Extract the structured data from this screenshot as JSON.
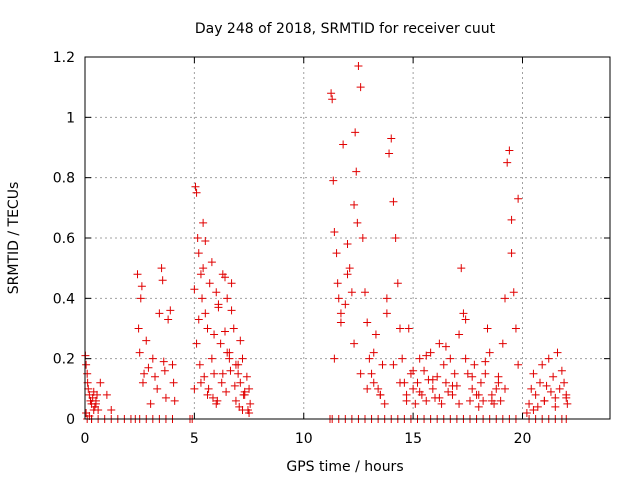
{
  "chart_data": {
    "type": "scatter",
    "title": "Day 248 of 2018, SRMTID for receiver cuut",
    "xlabel": "GPS time / hours",
    "ylabel": "SRMTID / TECUs",
    "xlim": [
      0,
      24
    ],
    "ylim": [
      0,
      1.2
    ],
    "xticks": [
      0,
      5,
      10,
      15,
      20
    ],
    "xtick_labels": [
      "0",
      "5",
      "10",
      "15",
      "20"
    ],
    "yticks": [
      0,
      0.2,
      0.4,
      0.6,
      0.8,
      1,
      1.2
    ],
    "ytick_labels": [
      "0",
      "0.2",
      "0.4",
      "0.6",
      "0.8",
      "1",
      "1.2"
    ],
    "grid": true,
    "marker": "+",
    "color": "#e00000",
    "series": [
      {
        "name": "SRMTID",
        "x": [
          0.02,
          0.05,
          0.1,
          0.12,
          0.15,
          0.2,
          0.25,
          0.3,
          0.35,
          0.4,
          0.45,
          0.5,
          0.55,
          0.6,
          0.05,
          0.1,
          0.2,
          0.3,
          0.4,
          0.5,
          0.3,
          0.6,
          0.9,
          1.2,
          1.5,
          1.8,
          2.1,
          2.3,
          0.7,
          1.0,
          1.2,
          2.4,
          2.45,
          2.5,
          2.55,
          2.6,
          2.65,
          2.7,
          2.8,
          2.9,
          3.0,
          3.1,
          3.2,
          3.3,
          3.4,
          3.5,
          3.55,
          3.6,
          3.65,
          3.7,
          3.8,
          3.9,
          4.0,
          4.05,
          4.1,
          2.5,
          2.8,
          3.1,
          3.4,
          3.7,
          4.0,
          4.8,
          4.9,
          5.0,
          5.05,
          5.1,
          5.15,
          5.2,
          5.3,
          5.35,
          5.4,
          5.5,
          5.6,
          5.7,
          5.8,
          5.9,
          6.0,
          6.1,
          6.2,
          6.3,
          6.4,
          6.5,
          6.6,
          6.7,
          6.8,
          6.9,
          7.0,
          7.1,
          7.2,
          7.3,
          7.4,
          7.5,
          7.55,
          5.2,
          5.5,
          5.8,
          6.1,
          6.4,
          6.7,
          7.0,
          7.3,
          5.4,
          5.9,
          6.5,
          7.1,
          5.0,
          5.3,
          5.6,
          6.0,
          6.3,
          6.6,
          6.9,
          7.2,
          7.5,
          5.1,
          5.25,
          5.45,
          5.65,
          5.85,
          6.05,
          6.25,
          6.45,
          6.65,
          6.85,
          7.05,
          7.25,
          7.45,
          11.2,
          11.25,
          11.3,
          11.35,
          11.4,
          11.5,
          11.55,
          11.6,
          11.7,
          11.8,
          11.9,
          12.0,
          12.1,
          12.2,
          12.3,
          12.35,
          12.4,
          12.45,
          12.5,
          12.6,
          12.7,
          12.8,
          12.9,
          13.0,
          13.1,
          13.2,
          13.3,
          13.4,
          13.5,
          13.6,
          13.7,
          13.8,
          13.9,
          14.0,
          14.1,
          14.2,
          14.3,
          14.4,
          14.5,
          14.6,
          14.7,
          14.8,
          14.9,
          15.0,
          15.1,
          15.2,
          15.3,
          15.4,
          15.5,
          15.6,
          15.7,
          15.8,
          15.9,
          16.0,
          16.1,
          16.2,
          16.3,
          16.4,
          16.5,
          16.6,
          16.7,
          16.8,
          16.9,
          17.0,
          17.1,
          17.2,
          17.3,
          17.4,
          17.5,
          17.6,
          17.7,
          17.8,
          17.9,
          18.0,
          18.1,
          18.2,
          18.3,
          18.4,
          18.5,
          18.6,
          18.7,
          18.8,
          18.9,
          19.0,
          19.1,
          19.2,
          19.3,
          19.4,
          19.5,
          19.6,
          19.7,
          19.8,
          11.3,
          11.6,
          11.9,
          12.2,
          12.5,
          12.8,
          13.1,
          13.4,
          13.7,
          14.0,
          14.3,
          14.6,
          14.9,
          15.2,
          15.5,
          15.8,
          16.1,
          16.4,
          16.7,
          17.0,
          17.3,
          17.6,
          17.9,
          18.2,
          18.5,
          18.8,
          19.1,
          19.4,
          19.7,
          11.4,
          11.7,
          12.0,
          12.3,
          12.6,
          12.9,
          13.2,
          13.5,
          13.8,
          14.1,
          14.4,
          14.7,
          15.0,
          15.3,
          15.6,
          15.9,
          16.2,
          16.5,
          16.8,
          17.1,
          17.4,
          17.7,
          18.0,
          18.3,
          18.6,
          18.9,
          19.2,
          19.5,
          19.8,
          20.2,
          20.3,
          20.4,
          20.5,
          20.6,
          20.7,
          20.8,
          20.9,
          21.0,
          21.1,
          21.2,
          21.3,
          21.4,
          21.5,
          21.6,
          21.7,
          21.8,
          21.9,
          22.0,
          22.05,
          20.3,
          20.6,
          20.9,
          21.2,
          21.5,
          21.8,
          22.0,
          20.5,
          21.0,
          21.5,
          22.0
        ],
        "y": [
          0.21,
          0.18,
          0.15,
          0.12,
          0.1,
          0.08,
          0.06,
          0.05,
          0.07,
          0.09,
          0.04,
          0.06,
          0.08,
          0.03,
          0.02,
          0.0,
          0.01,
          0.0,
          0.03,
          0.05,
          0.0,
          0.0,
          0.0,
          0.0,
          0.0,
          0.0,
          0.0,
          0.0,
          0.12,
          0.08,
          0.03,
          0.48,
          0.3,
          0.22,
          0.4,
          0.44,
          0.12,
          0.15,
          0.26,
          0.17,
          0.05,
          0.2,
          0.14,
          0.1,
          0.35,
          0.5,
          0.46,
          0.19,
          0.16,
          0.07,
          0.33,
          0.36,
          0.18,
          0.12,
          0.06,
          0.0,
          0.0,
          0.0,
          0.0,
          0.0,
          0.0,
          0.0,
          0.0,
          0.43,
          0.77,
          0.75,
          0.6,
          0.55,
          0.48,
          0.4,
          0.65,
          0.35,
          0.3,
          0.45,
          0.52,
          0.28,
          0.42,
          0.38,
          0.25,
          0.48,
          0.47,
          0.22,
          0.2,
          0.36,
          0.3,
          0.18,
          0.15,
          0.12,
          0.2,
          0.08,
          0.14,
          0.1,
          0.05,
          0.33,
          0.59,
          0.2,
          0.37,
          0.29,
          0.45,
          0.18,
          0.09,
          0.5,
          0.15,
          0.4,
          0.26,
          0.1,
          0.12,
          0.08,
          0.05,
          0.15,
          0.22,
          0.06,
          0.03,
          0.02,
          0.25,
          0.18,
          0.14,
          0.1,
          0.07,
          0.06,
          0.12,
          0.09,
          0.16,
          0.11,
          0.04,
          0.08,
          0.03,
          0.0,
          1.08,
          1.06,
          0.79,
          0.62,
          0.55,
          0.45,
          0.4,
          0.35,
          0.91,
          0.38,
          0.58,
          0.5,
          0.42,
          0.71,
          0.95,
          0.82,
          0.65,
          1.17,
          1.1,
          0.6,
          0.42,
          0.32,
          0.2,
          0.15,
          0.12,
          0.28,
          0.1,
          0.08,
          0.18,
          0.05,
          0.35,
          0.88,
          0.93,
          0.72,
          0.6,
          0.45,
          0.3,
          0.2,
          0.12,
          0.08,
          0.3,
          0.15,
          0.1,
          0.05,
          0.12,
          0.2,
          0.08,
          0.16,
          0.06,
          0.13,
          0.22,
          0.1,
          0.07,
          0.14,
          0.25,
          0.05,
          0.18,
          0.12,
          0.09,
          0.2,
          0.08,
          0.15,
          0.11,
          0.28,
          0.5,
          0.35,
          0.2,
          0.15,
          0.06,
          0.1,
          0.18,
          0.08,
          0.04,
          0.12,
          0.06,
          0.15,
          0.3,
          0.22,
          0.08,
          0.05,
          0.1,
          0.14,
          0.06,
          0.25,
          0.4,
          0.85,
          0.89,
          0.55,
          0.42,
          0.3,
          0.18,
          0.0,
          0.0,
          0.0,
          0.0,
          0.0,
          0.0,
          0.0,
          0.0,
          0.0,
          0.0,
          0.0,
          0.0,
          0.0,
          0.0,
          0.0,
          0.0,
          0.0,
          0.0,
          0.0,
          0.0,
          0.0,
          0.0,
          0.0,
          0.0,
          0.0,
          0.0,
          0.0,
          0.0,
          0.0,
          0.2,
          0.32,
          0.48,
          0.25,
          0.15,
          0.1,
          0.22,
          0.08,
          0.4,
          0.18,
          0.12,
          0.06,
          0.16,
          0.09,
          0.21,
          0.13,
          0.07,
          0.24,
          0.11,
          0.05,
          0.33,
          0.14,
          0.08,
          0.19,
          0.06,
          0.12,
          0.1,
          0.66,
          0.73,
          0.02,
          0.05,
          0.1,
          0.15,
          0.08,
          0.04,
          0.12,
          0.18,
          0.06,
          0.11,
          0.2,
          0.09,
          0.14,
          0.07,
          0.22,
          0.1,
          0.16,
          0.12,
          0.08,
          0.05,
          0.0,
          0.0,
          0.0,
          0.0,
          0.0,
          0.0,
          0.0,
          0.03,
          0.06,
          0.04,
          0.07
        ]
      }
    ]
  }
}
